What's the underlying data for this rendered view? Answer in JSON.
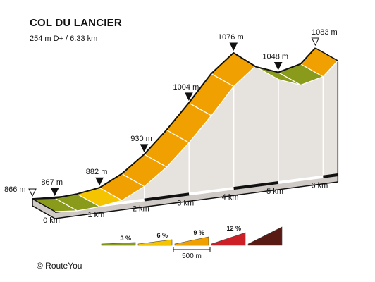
{
  "header": {
    "title": "COL DU LANCIER",
    "subtitle": "254 m D+ / 6.33 km"
  },
  "footer": {
    "copyright": "© RouteYou"
  },
  "colors": {
    "grade_3": "#8a9b1c",
    "grade_6": "#f5c400",
    "grade_9": "#f0a000",
    "grade_12": "#cc2026",
    "grade_max": "#5a1a14",
    "side_fill": "#e6e2de",
    "outline": "#111111"
  },
  "chart_data": {
    "type": "area",
    "title": "COL DU LANCIER",
    "subtitle": "254 m D+ / 6.33 km",
    "x_unit": "km",
    "y_unit": "m",
    "xlim": [
      0,
      6.33
    ],
    "ylim": [
      866,
      1083
    ],
    "x_ticks": [
      {
        "value": 0,
        "label": "0 km"
      },
      {
        "value": 1,
        "label": "1 km"
      },
      {
        "value": 2,
        "label": "2 km"
      },
      {
        "value": 3,
        "label": "3 km"
      },
      {
        "value": 4,
        "label": "4 km"
      },
      {
        "value": 5,
        "label": "5 km"
      },
      {
        "value": 6,
        "label": "6 km"
      }
    ],
    "profile": [
      {
        "x": 0.0,
        "y": 866
      },
      {
        "x": 0.5,
        "y": 867
      },
      {
        "x": 1.0,
        "y": 873
      },
      {
        "x": 1.5,
        "y": 882
      },
      {
        "x": 2.0,
        "y": 902
      },
      {
        "x": 2.5,
        "y": 930
      },
      {
        "x": 3.0,
        "y": 965
      },
      {
        "x": 3.5,
        "y": 1004
      },
      {
        "x": 4.0,
        "y": 1046
      },
      {
        "x": 4.5,
        "y": 1076
      },
      {
        "x": 5.0,
        "y": 1056
      },
      {
        "x": 5.5,
        "y": 1048
      },
      {
        "x": 6.0,
        "y": 1060
      },
      {
        "x": 6.33,
        "y": 1083
      }
    ],
    "segment_grades": [
      "3",
      "3",
      "6",
      "9",
      "9",
      "9",
      "9",
      "9",
      "9",
      "3",
      "3",
      "3",
      "9"
    ],
    "markers": [
      {
        "x": 0.0,
        "label": "866 m",
        "style": "start"
      },
      {
        "x": 0.5,
        "label": "867 m",
        "style": "filled"
      },
      {
        "x": 1.5,
        "label": "882 m",
        "style": "filled"
      },
      {
        "x": 2.5,
        "label": "930 m",
        "style": "filled"
      },
      {
        "x": 3.5,
        "label": "1004 m",
        "style": "filled"
      },
      {
        "x": 4.5,
        "label": "1076 m",
        "style": "filled"
      },
      {
        "x": 5.5,
        "label": "1048 m",
        "style": "filled"
      },
      {
        "x": 6.33,
        "label": "1083 m",
        "style": "end"
      }
    ],
    "legend": {
      "entries": [
        {
          "label": "3 %",
          "grade": "3"
        },
        {
          "label": "6 %",
          "grade": "6"
        },
        {
          "label": "9 %",
          "grade": "9"
        },
        {
          "label": "12 %",
          "grade": "12"
        },
        {
          "label": "",
          "grade": "max"
        }
      ],
      "scale_label": "500 m"
    }
  }
}
